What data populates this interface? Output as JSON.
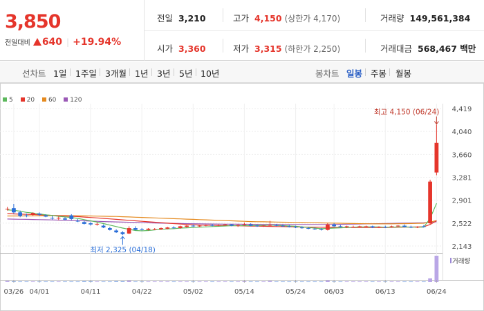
{
  "price": {
    "current": "3,850",
    "change_label": "전일대비",
    "change_amount": "640",
    "change_pct": "+19.94%"
  },
  "summary": {
    "prev_close": {
      "label": "전일",
      "value": "3,210"
    },
    "high": {
      "label": "고가",
      "value": "4,150",
      "limit_label": "(상한가 4,170)"
    },
    "volume": {
      "label": "거래량",
      "value": "149,561,384"
    },
    "open": {
      "label": "시가",
      "value": "3,360"
    },
    "low": {
      "label": "저가",
      "value": "3,315",
      "limit_label": "(하한가 2,250)"
    },
    "amount": {
      "label": "거래대금",
      "value": "568,467 백만"
    }
  },
  "line_tabs": {
    "title": "선차트",
    "items": [
      "1일",
      "1주일",
      "3개월",
      "1년",
      "3년",
      "5년",
      "10년"
    ]
  },
  "candle_tabs": {
    "title": "봉차트",
    "items": [
      "일봉",
      "주봉",
      "월봉"
    ],
    "active": "일봉"
  },
  "colors": {
    "up": "#e5352b",
    "down": "#2b6fd8",
    "ma5": "#5cb85c",
    "ma20": "#e5352b",
    "ma60": "#e58a1f",
    "ma120": "#9b59b6"
  },
  "chart_data": {
    "type": "candlestick",
    "legend": [
      {
        "name": "5",
        "color": "#5cb85c"
      },
      {
        "name": "20",
        "color": "#e5352b"
      },
      {
        "name": "60",
        "color": "#e58a1f"
      },
      {
        "name": "120",
        "color": "#9b59b6"
      }
    ],
    "y_ticks": [
      "4,419",
      "4,040",
      "3,660",
      "3,281",
      "2,901",
      "2,522",
      "2,143"
    ],
    "ylim": [
      2143,
      4419
    ],
    "x_ticks": [
      {
        "label": "03/26",
        "index": 1
      },
      {
        "label": "04/01",
        "index": 5
      },
      {
        "label": "04/11",
        "index": 13
      },
      {
        "label": "04/22",
        "index": 21
      },
      {
        "label": "05/02",
        "index": 29
      },
      {
        "label": "05/14",
        "index": 37
      },
      {
        "label": "05/24",
        "index": 45
      },
      {
        "label": "06/03",
        "index": 51
      },
      {
        "label": "06/13",
        "index": 59
      },
      {
        "label": "06/24",
        "index": 67
      }
    ],
    "annotations": {
      "high": {
        "text": "최고 4,150 (06/24)",
        "index": 67,
        "value": 4150
      },
      "low": {
        "text": "최저 2,325 (04/18)",
        "index": 18,
        "value": 2325
      }
    },
    "volume_label": "거래량",
    "candles": [
      [
        2750,
        2790,
        2730,
        2760
      ],
      [
        2770,
        2840,
        2680,
        2700
      ],
      [
        2700,
        2730,
        2620,
        2640
      ],
      [
        2650,
        2680,
        2620,
        2640
      ],
      [
        2660,
        2700,
        2640,
        2690
      ],
      [
        2680,
        2700,
        2640,
        2660
      ],
      [
        2650,
        2670,
        2620,
        2630
      ],
      [
        2610,
        2640,
        2580,
        2600
      ],
      [
        2600,
        2630,
        2570,
        2610
      ],
      [
        2600,
        2620,
        2570,
        2580
      ],
      [
        2650,
        2670,
        2570,
        2590
      ],
      [
        2560,
        2590,
        2540,
        2550
      ],
      [
        2540,
        2560,
        2500,
        2510
      ],
      [
        2520,
        2540,
        2480,
        2500
      ],
      [
        2500,
        2530,
        2480,
        2510
      ],
      [
        2480,
        2500,
        2440,
        2450
      ],
      [
        2440,
        2460,
        2400,
        2410
      ],
      [
        2400,
        2420,
        2360,
        2370
      ],
      [
        2370,
        2390,
        2325,
        2340
      ],
      [
        2350,
        2470,
        2340,
        2440
      ],
      [
        2440,
        2470,
        2400,
        2410
      ],
      [
        2420,
        2440,
        2400,
        2410
      ],
      [
        2410,
        2440,
        2400,
        2430
      ],
      [
        2420,
        2440,
        2410,
        2420
      ],
      [
        2420,
        2450,
        2410,
        2440
      ],
      [
        2430,
        2460,
        2420,
        2450
      ],
      [
        2450,
        2470,
        2430,
        2440
      ],
      [
        2440,
        2480,
        2430,
        2470
      ],
      [
        2460,
        2490,
        2450,
        2480
      ],
      [
        2480,
        2500,
        2460,
        2470
      ],
      [
        2470,
        2490,
        2460,
        2480
      ],
      [
        2480,
        2500,
        2470,
        2490
      ],
      [
        2490,
        2510,
        2470,
        2480
      ],
      [
        2480,
        2500,
        2470,
        2490
      ],
      [
        2490,
        2510,
        2480,
        2500
      ],
      [
        2500,
        2510,
        2470,
        2480
      ],
      [
        2480,
        2500,
        2460,
        2490
      ],
      [
        2490,
        2530,
        2480,
        2500
      ],
      [
        2500,
        2520,
        2470,
        2480
      ],
      [
        2480,
        2500,
        2460,
        2470
      ],
      [
        2470,
        2490,
        2460,
        2480
      ],
      [
        2480,
        2560,
        2470,
        2490
      ],
      [
        2490,
        2510,
        2470,
        2480
      ],
      [
        2480,
        2500,
        2460,
        2470
      ],
      [
        2470,
        2490,
        2450,
        2460
      ],
      [
        2460,
        2480,
        2440,
        2450
      ],
      [
        2450,
        2470,
        2430,
        2440
      ],
      [
        2440,
        2460,
        2420,
        2430
      ],
      [
        2430,
        2450,
        2410,
        2420
      ],
      [
        2420,
        2440,
        2400,
        2410
      ],
      [
        2410,
        2520,
        2400,
        2500
      ],
      [
        2500,
        2520,
        2460,
        2470
      ],
      [
        2470,
        2490,
        2450,
        2460
      ],
      [
        2460,
        2480,
        2440,
        2470
      ],
      [
        2460,
        2480,
        2450,
        2460
      ],
      [
        2460,
        2480,
        2450,
        2470
      ],
      [
        2460,
        2480,
        2450,
        2470
      ],
      [
        2470,
        2480,
        2440,
        2450
      ],
      [
        2450,
        2470,
        2440,
        2460
      ],
      [
        2460,
        2480,
        2440,
        2450
      ],
      [
        2460,
        2480,
        2450,
        2470
      ],
      [
        2470,
        2490,
        2460,
        2480
      ],
      [
        2480,
        2500,
        2450,
        2460
      ],
      [
        2460,
        2480,
        2440,
        2450
      ],
      [
        2450,
        2470,
        2440,
        2460
      ],
      [
        2470,
        2490,
        2450,
        2460
      ],
      [
        2520,
        3240,
        2500,
        3210
      ],
      [
        3360,
        4150,
        3315,
        3850
      ]
    ],
    "volumes": [
      0.04,
      0.03,
      0.02,
      0.02,
      0.02,
      0.02,
      0.02,
      0.02,
      0.02,
      0.02,
      0.02,
      0.02,
      0.03,
      0.03,
      0.02,
      0.02,
      0.02,
      0.03,
      0.03,
      0.05,
      0.02,
      0.02,
      0.02,
      0.02,
      0.02,
      0.02,
      0.02,
      0.02,
      0.02,
      0.02,
      0.02,
      0.02,
      0.02,
      0.02,
      0.02,
      0.02,
      0.02,
      0.03,
      0.02,
      0.02,
      0.02,
      0.04,
      0.02,
      0.02,
      0.02,
      0.02,
      0.02,
      0.02,
      0.02,
      0.02,
      0.06,
      0.02,
      0.02,
      0.02,
      0.02,
      0.02,
      0.02,
      0.02,
      0.02,
      0.02,
      0.02,
      0.02,
      0.02,
      0.02,
      0.02,
      0.02,
      0.14,
      1.0
    ],
    "ma5": [
      2740,
      2735,
      2720,
      2700,
      2690,
      2675,
      2660,
      2650,
      2635,
      2625,
      2615,
      2600,
      2580,
      2560,
      2540,
      2515,
      2490,
      2465,
      2440,
      2420,
      2400,
      2395,
      2400,
      2410,
      2420,
      2425,
      2430,
      2440,
      2445,
      2450,
      2455,
      2460,
      2465,
      2470,
      2475,
      2480,
      2480,
      2480,
      2480,
      2485,
      2485,
      2490,
      2485,
      2480,
      2475,
      2470,
      2460,
      2450,
      2440,
      2430,
      2435,
      2440,
      2445,
      2450,
      2455,
      2460,
      2460,
      2460,
      2460,
      2455,
      2455,
      2460,
      2460,
      2455,
      2455,
      2455,
      2600,
      2850
    ],
    "ma20": [
      2680,
      2675,
      2670,
      2668,
      2665,
      2660,
      2655,
      2650,
      2645,
      2640,
      2635,
      2630,
      2622,
      2615,
      2608,
      2600,
      2592,
      2584,
      2576,
      2568,
      2560,
      2552,
      2545,
      2538,
      2530,
      2522,
      2515,
      2508,
      2500,
      2495,
      2490,
      2488,
      2486,
      2484,
      2482,
      2480,
      2478,
      2476,
      2474,
      2472,
      2470,
      2468,
      2466,
      2464,
      2462,
      2460,
      2458,
      2456,
      2455,
      2454,
      2453,
      2452,
      2451,
      2450,
      2450,
      2450,
      2450,
      2450,
      2450,
      2450,
      2452,
      2454,
      2456,
      2458,
      2460,
      2462,
      2500,
      2560
    ],
    "ma60": [
      2640,
      2640,
      2641,
      2642,
      2643,
      2644,
      2645,
      2646,
      2646,
      2646,
      2645,
      2644,
      2642,
      2640,
      2638,
      2636,
      2634,
      2632,
      2628,
      2624,
      2620,
      2616,
      2612,
      2608,
      2604,
      2600,
      2596,
      2592,
      2588,
      2584,
      2580,
      2576,
      2572,
      2568,
      2564,
      2560,
      2556,
      2552,
      2548,
      2546,
      2544,
      2542,
      2540,
      2538,
      2536,
      2534,
      2532,
      2530,
      2528,
      2526,
      2524,
      2522,
      2520,
      2518,
      2516,
      2514,
      2512,
      2510,
      2510,
      2510,
      2510,
      2512,
      2514,
      2516,
      2518,
      2520,
      2540,
      2565
    ],
    "ma120": [
      2590,
      2588,
      2586,
      2584,
      2582,
      2580,
      2578,
      2575,
      2572,
      2569,
      2566,
      2563,
      2560,
      2556,
      2552,
      2548,
      2545,
      2542,
      2539,
      2536,
      2533,
      2530,
      2527,
      2524,
      2522,
      2520,
      2518,
      2516,
      2514,
      2512,
      2510,
      2509,
      2508,
      2507,
      2506,
      2505,
      2504,
      2503,
      2502,
      2501,
      2500,
      2500,
      2500,
      2500,
      2500,
      2500,
      2500,
      2500,
      2500,
      2500,
      2500,
      2500,
      2502,
      2504,
      2506,
      2508,
      2510,
      2512,
      2514,
      2516,
      2518,
      2520,
      2522,
      2524,
      2526,
      2528,
      2535,
      2545
    ]
  }
}
